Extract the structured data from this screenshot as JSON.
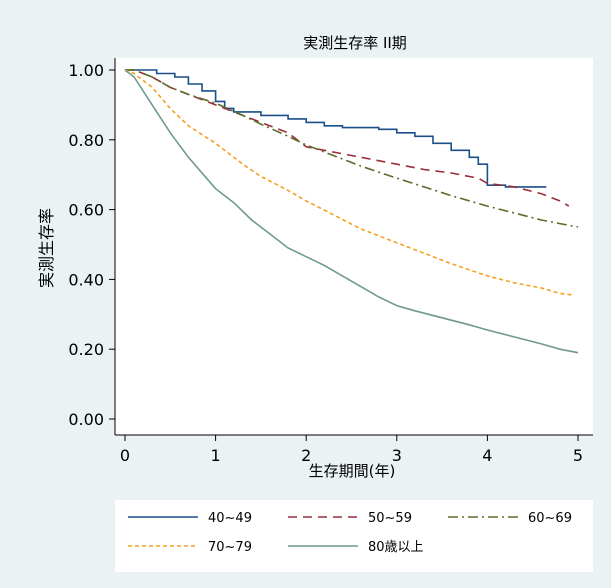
{
  "chart_data": {
    "type": "line",
    "title": "実測生存率  II期",
    "xlabel": "生存期間(年)",
    "ylabel": "実測生存率",
    "xlim": [
      0,
      5
    ],
    "ylim": [
      0,
      1
    ],
    "x_ticks": [
      "0",
      "1",
      "2",
      "3",
      "4",
      "5"
    ],
    "y_ticks": [
      "0.00",
      "0.20",
      "0.40",
      "0.60",
      "0.80",
      "1.00"
    ],
    "grid": false,
    "legend_position": "bottom",
    "series": [
      {
        "name": "40~49",
        "color": "#1a4f8a",
        "dash": "solid",
        "step": true,
        "points": [
          [
            0,
            1.0
          ],
          [
            0.15,
            1.0
          ],
          [
            0.35,
            0.99
          ],
          [
            0.55,
            0.98
          ],
          [
            0.7,
            0.96
          ],
          [
            0.85,
            0.94
          ],
          [
            1.0,
            0.91
          ],
          [
            1.1,
            0.89
          ],
          [
            1.2,
            0.88
          ],
          [
            1.5,
            0.87
          ],
          [
            1.8,
            0.86
          ],
          [
            2.0,
            0.85
          ],
          [
            2.2,
            0.84
          ],
          [
            2.4,
            0.835
          ],
          [
            2.8,
            0.83
          ],
          [
            3.0,
            0.82
          ],
          [
            3.2,
            0.81
          ],
          [
            3.4,
            0.79
          ],
          [
            3.6,
            0.77
          ],
          [
            3.8,
            0.75
          ],
          [
            3.9,
            0.73
          ],
          [
            4.0,
            0.67
          ],
          [
            4.2,
            0.665
          ],
          [
            4.6,
            0.665
          ],
          [
            4.65,
            0.665
          ]
        ]
      },
      {
        "name": "50~59",
        "color": "#9a2e3a",
        "dash": "dashed",
        "step": false,
        "points": [
          [
            0,
            1.0
          ],
          [
            0.1,
            1.0
          ],
          [
            0.3,
            0.98
          ],
          [
            0.5,
            0.95
          ],
          [
            0.7,
            0.93
          ],
          [
            1.0,
            0.9
          ],
          [
            1.3,
            0.87
          ],
          [
            1.5,
            0.85
          ],
          [
            1.8,
            0.82
          ],
          [
            2.0,
            0.78
          ],
          [
            2.2,
            0.77
          ],
          [
            2.5,
            0.755
          ],
          [
            2.8,
            0.74
          ],
          [
            3.0,
            0.73
          ],
          [
            3.3,
            0.715
          ],
          [
            3.6,
            0.705
          ],
          [
            3.9,
            0.69
          ],
          [
            4.0,
            0.675
          ],
          [
            4.3,
            0.665
          ],
          [
            4.6,
            0.645
          ],
          [
            4.8,
            0.625
          ],
          [
            4.9,
            0.61
          ]
        ]
      },
      {
        "name": "60~69",
        "color": "#5a6e2a",
        "dash": "dashdot",
        "step": false,
        "points": [
          [
            0,
            1.0
          ],
          [
            0.1,
            1.0
          ],
          [
            0.3,
            0.98
          ],
          [
            0.5,
            0.95
          ],
          [
            0.7,
            0.93
          ],
          [
            1.0,
            0.905
          ],
          [
            1.3,
            0.87
          ],
          [
            1.5,
            0.845
          ],
          [
            1.8,
            0.81
          ],
          [
            2.0,
            0.785
          ],
          [
            2.3,
            0.755
          ],
          [
            2.6,
            0.725
          ],
          [
            3.0,
            0.69
          ],
          [
            3.3,
            0.665
          ],
          [
            3.6,
            0.64
          ],
          [
            4.0,
            0.61
          ],
          [
            4.3,
            0.59
          ],
          [
            4.6,
            0.57
          ],
          [
            4.8,
            0.56
          ],
          [
            5.0,
            0.55
          ]
        ]
      },
      {
        "name": "70~79",
        "color": "#f5a020",
        "dash": "dotted",
        "step": false,
        "points": [
          [
            0,
            1.0
          ],
          [
            0.1,
            0.99
          ],
          [
            0.3,
            0.95
          ],
          [
            0.5,
            0.89
          ],
          [
            0.7,
            0.84
          ],
          [
            1.0,
            0.79
          ],
          [
            1.3,
            0.73
          ],
          [
            1.5,
            0.695
          ],
          [
            1.8,
            0.655
          ],
          [
            2.0,
            0.625
          ],
          [
            2.3,
            0.585
          ],
          [
            2.6,
            0.545
          ],
          [
            3.0,
            0.505
          ],
          [
            3.3,
            0.475
          ],
          [
            3.6,
            0.445
          ],
          [
            4.0,
            0.41
          ],
          [
            4.3,
            0.39
          ],
          [
            4.6,
            0.375
          ],
          [
            4.8,
            0.36
          ],
          [
            4.95,
            0.355
          ]
        ]
      },
      {
        "name": "80歳以上",
        "color": "#6f9a8e",
        "dash": "solid",
        "step": false,
        "points": [
          [
            0,
            1.0
          ],
          [
            0.1,
            0.98
          ],
          [
            0.2,
            0.94
          ],
          [
            0.35,
            0.88
          ],
          [
            0.5,
            0.82
          ],
          [
            0.7,
            0.75
          ],
          [
            0.9,
            0.69
          ],
          [
            1.0,
            0.66
          ],
          [
            1.2,
            0.62
          ],
          [
            1.4,
            0.57
          ],
          [
            1.6,
            0.53
          ],
          [
            1.8,
            0.49
          ],
          [
            2.0,
            0.465
          ],
          [
            2.2,
            0.44
          ],
          [
            2.4,
            0.41
          ],
          [
            2.6,
            0.38
          ],
          [
            2.8,
            0.35
          ],
          [
            3.0,
            0.325
          ],
          [
            3.2,
            0.31
          ],
          [
            3.5,
            0.29
          ],
          [
            3.8,
            0.27
          ],
          [
            4.0,
            0.255
          ],
          [
            4.3,
            0.235
          ],
          [
            4.6,
            0.215
          ],
          [
            4.8,
            0.2
          ],
          [
            5.0,
            0.19
          ]
        ]
      }
    ]
  }
}
